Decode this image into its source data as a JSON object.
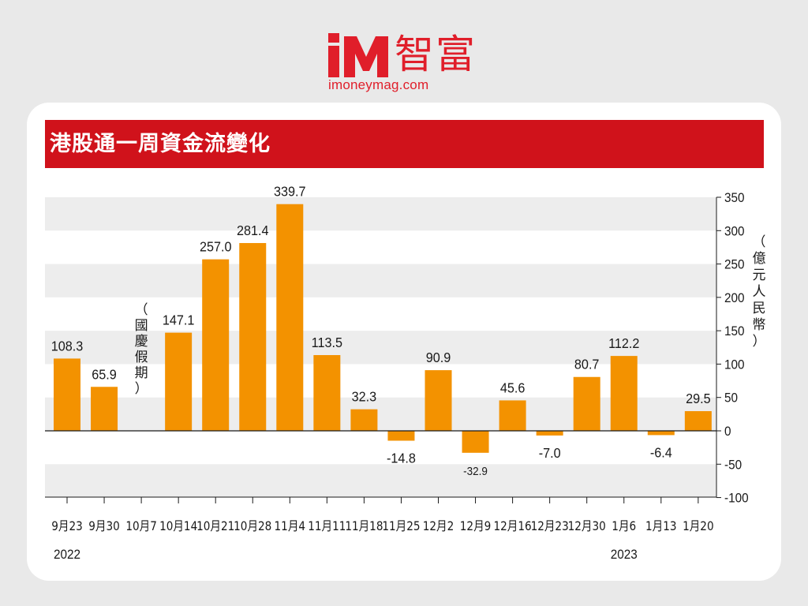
{
  "logo": {
    "mark_text": "iM",
    "chinese": "智富",
    "url": "imoneymag.com"
  },
  "header": {
    "title": "港股通一周資金流變化"
  },
  "colors": {
    "brand_red": "#d0121b",
    "bar_orange": "#f39200",
    "band_gray": "#ededed"
  },
  "chart_data": {
    "type": "bar",
    "title": "港股通一周資金流變化",
    "ylabel": "（億元人民幣）",
    "ylim": [
      -100,
      350
    ],
    "yticks": [
      350,
      300,
      250,
      200,
      150,
      100,
      50,
      0,
      -50,
      -100
    ],
    "ytick_labels": [
      "350",
      "300",
      "250",
      "200",
      "150",
      "100",
      "50",
      "0",
      "-50",
      "-100"
    ],
    "y_axis_position": "right",
    "grid": "alternating horizontal bands",
    "categories": [
      "9月23",
      "9月30",
      "10月7",
      "10月14",
      "10月21",
      "10月28",
      "11月4",
      "11月11",
      "11月18",
      "11月25",
      "12月2",
      "12月9",
      "12月16",
      "12月23",
      "12月30",
      "1月6",
      "1月13",
      "1月20"
    ],
    "values": [
      108.3,
      65.9,
      null,
      147.1,
      257.0,
      281.4,
      339.7,
      113.5,
      32.3,
      -14.8,
      90.9,
      -32.9,
      45.6,
      -7.0,
      80.7,
      112.2,
      -6.4,
      29.5
    ],
    "value_labels": [
      "108.3",
      "65.9",
      "",
      "147.1",
      "257.0",
      "281.4",
      "339.7",
      "113.5",
      "32.3",
      "-14.8",
      "90.9",
      "-32.9",
      "45.6",
      "-7.0",
      "80.7",
      "112.2",
      "-6.4",
      "29.5"
    ],
    "year_labels": [
      {
        "category": "9月23",
        "text": "2022"
      },
      {
        "category": "1月6",
        "text": "2023"
      }
    ],
    "annotations": [
      {
        "category": "10月7",
        "text": "（國慶假期）"
      }
    ]
  }
}
